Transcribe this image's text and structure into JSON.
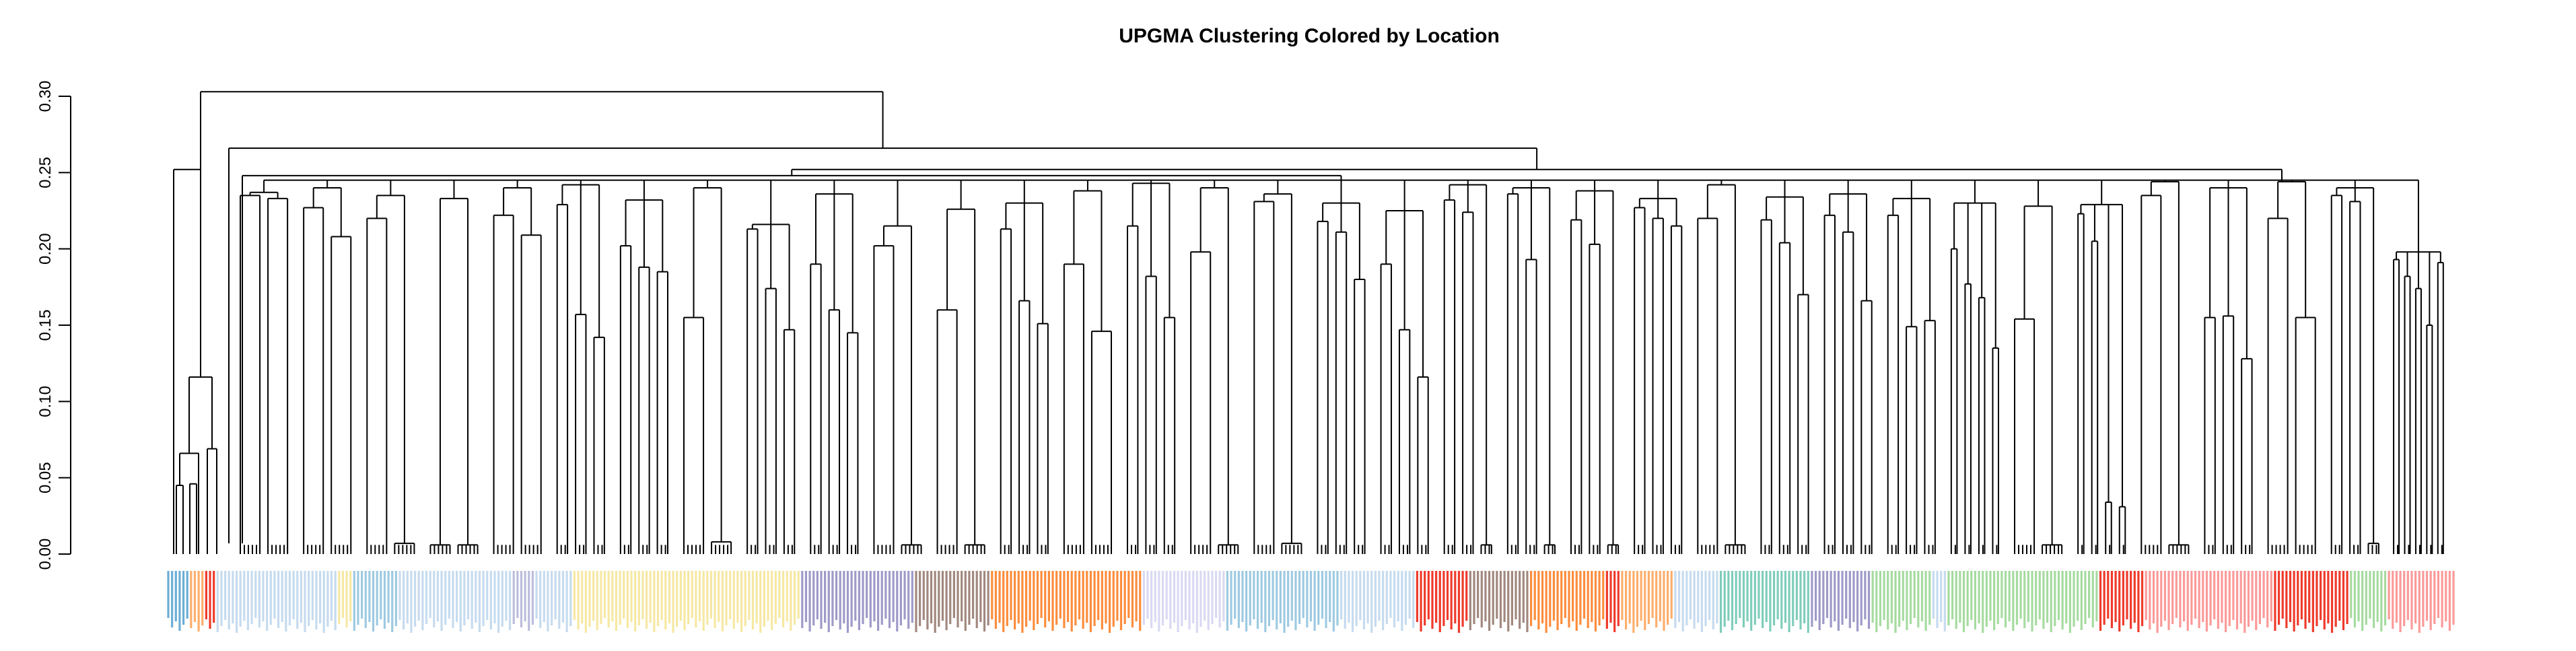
{
  "chart_data": {
    "type": "dendrogram",
    "title": "UPGMA Clustering Colored by Location",
    "xlabel": "",
    "ylabel": "",
    "ylim": [
      0,
      0.3
    ],
    "y_ticks": [
      "0.00",
      "0.05",
      "0.10",
      "0.15",
      "0.20",
      "0.25",
      "0.30"
    ],
    "grid": false,
    "leaf_label_colors": [
      "#6baed6",
      "#c6dbef",
      "#fdae6b",
      "#ef3b2c",
      "#f6e8a3",
      "#bcbddc",
      "#9e9ac8",
      "#a1887f",
      "#fd8d3c",
      "#d9d9f3",
      "#9ecae1",
      "#a6dba0",
      "#7fcdbb",
      "#fb9a99"
    ],
    "leaf_groups": [
      {
        "color": "#6baed6",
        "count": 6
      },
      {
        "color": "#fdae6b",
        "count": 4
      },
      {
        "color": "#ef3b2c",
        "count": 3
      },
      {
        "color": "#c6dbef",
        "count": 32
      },
      {
        "color": "#f6e8a3",
        "count": 4
      },
      {
        "color": "#9ecae1",
        "count": 12
      },
      {
        "color": "#c6dbef",
        "count": 30
      },
      {
        "color": "#bcbddc",
        "count": 6
      },
      {
        "color": "#c6dbef",
        "count": 10
      },
      {
        "color": "#f6e8a3",
        "count": 60
      },
      {
        "color": "#9e9ac8",
        "count": 30
      },
      {
        "color": "#a1887f",
        "count": 20
      },
      {
        "color": "#fd8d3c",
        "count": 40
      },
      {
        "color": "#d9d9f3",
        "count": 22
      },
      {
        "color": "#9ecae1",
        "count": 30
      },
      {
        "color": "#c6dbef",
        "count": 20
      },
      {
        "color": "#ef3b2c",
        "count": 14
      },
      {
        "color": "#a1887f",
        "count": 16
      },
      {
        "color": "#fd8d3c",
        "count": 20
      },
      {
        "color": "#ef3b2c",
        "count": 4
      },
      {
        "color": "#fdae6b",
        "count": 14
      },
      {
        "color": "#c6dbef",
        "count": 12
      },
      {
        "color": "#7fcdbb",
        "count": 24
      },
      {
        "color": "#9e9ac8",
        "count": 16
      },
      {
        "color": "#a6dba0",
        "count": 16
      },
      {
        "color": "#c6dbef",
        "count": 4
      },
      {
        "color": "#a6dba0",
        "count": 40
      },
      {
        "color": "#ef3b2c",
        "count": 12
      },
      {
        "color": "#fb9a99",
        "count": 34
      },
      {
        "color": "#ef3b2c",
        "count": 20
      },
      {
        "color": "#a6dba0",
        "count": 10
      },
      {
        "color": "#fb9a99",
        "count": 18
      }
    ],
    "top_merges": [
      {
        "height": 0.303
      },
      {
        "height": 0.266
      },
      {
        "height": 0.252
      },
      {
        "height": 0.248
      },
      {
        "height": 0.245
      }
    ],
    "clusters": [
      {
        "height": 0.237,
        "sub": [
          0.235,
          0.233
        ]
      },
      {
        "height": 0.24,
        "sub": [
          0.227,
          0.208
        ]
      },
      {
        "height": 0.235,
        "sub": [
          0.22,
          0.007
        ]
      },
      {
        "height": 0.233,
        "sub": [
          0.006,
          0.006
        ]
      },
      {
        "height": 0.24,
        "sub": [
          0.222,
          0.209
        ]
      },
      {
        "height": 0.242,
        "sub": [
          0.229,
          0.157,
          0.142
        ]
      },
      {
        "height": 0.232,
        "sub": [
          0.202,
          0.188,
          0.185
        ]
      },
      {
        "height": 0.24,
        "sub": [
          0.155,
          0.008
        ]
      },
      {
        "height": 0.216,
        "sub": [
          0.213,
          0.174,
          0.147
        ]
      },
      {
        "height": 0.236,
        "sub": [
          0.19,
          0.16,
          0.145
        ]
      },
      {
        "height": 0.215,
        "sub": [
          0.202,
          0.006
        ]
      },
      {
        "height": 0.226,
        "sub": [
          0.16,
          0.006
        ]
      },
      {
        "height": 0.23,
        "sub": [
          0.213,
          0.166,
          0.151
        ]
      },
      {
        "height": 0.238,
        "sub": [
          0.19,
          0.146
        ]
      },
      {
        "height": 0.243,
        "sub": [
          0.215,
          0.182,
          0.155
        ]
      },
      {
        "height": 0.24,
        "sub": [
          0.198,
          0.006
        ]
      },
      {
        "height": 0.236,
        "sub": [
          0.231,
          0.007
        ]
      },
      {
        "height": 0.23,
        "sub": [
          0.218,
          0.211,
          0.18
        ]
      },
      {
        "height": 0.225,
        "sub": [
          0.19,
          0.147,
          0.116
        ]
      },
      {
        "height": 0.242,
        "sub": [
          0.232,
          0.224,
          0.006
        ]
      },
      {
        "height": 0.24,
        "sub": [
          0.236,
          0.193,
          0.006
        ]
      },
      {
        "height": 0.238,
        "sub": [
          0.219,
          0.203,
          0.006
        ]
      },
      {
        "height": 0.233,
        "sub": [
          0.227,
          0.22,
          0.215
        ]
      },
      {
        "height": 0.242,
        "sub": [
          0.22,
          0.006
        ]
      },
      {
        "height": 0.234,
        "sub": [
          0.219,
          0.204,
          0.17
        ]
      },
      {
        "height": 0.236,
        "sub": [
          0.222,
          0.211,
          0.166
        ]
      },
      {
        "height": 0.233,
        "sub": [
          0.222,
          0.149,
          0.153
        ]
      },
      {
        "height": 0.23,
        "sub": [
          0.2,
          0.177,
          0.168,
          0.135
        ]
      },
      {
        "height": 0.228,
        "sub": [
          0.154,
          0.006
        ]
      },
      {
        "height": 0.229,
        "sub": [
          0.223,
          0.205,
          0.034,
          0.031
        ]
      },
      {
        "height": 0.244,
        "sub": [
          0.235,
          0.006
        ]
      },
      {
        "height": 0.24,
        "sub": [
          0.155,
          0.156,
          0.128
        ]
      },
      {
        "height": 0.244,
        "sub": [
          0.22,
          0.155
        ]
      },
      {
        "height": 0.24,
        "sub": [
          0.235,
          0.231,
          0.007
        ]
      },
      {
        "height": 0.198,
        "sub": [
          0.193,
          0.182,
          0.174,
          0.15,
          0.191
        ]
      }
    ],
    "outgroup": {
      "height": 0.252,
      "sub": [
        0.116,
        0.066,
        0.045,
        0.046,
        0.069,
        0.067
      ]
    }
  }
}
